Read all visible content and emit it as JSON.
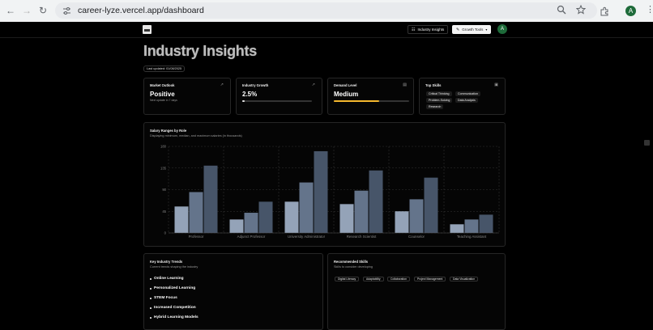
{
  "browser": {
    "url": "career-lyze.vercel.app/dashboard",
    "avatar_letter": "A"
  },
  "header": {
    "industry_insights_label": "Industry Insights",
    "growth_tools_label": "Growth Tools",
    "avatar_letter": "A"
  },
  "page": {
    "title": "Industry Insights",
    "last_updated": "Last updated: 01/08/2025"
  },
  "cards": {
    "market": {
      "title": "Market Outlook",
      "value": "Positive",
      "sub": "Next update in 7 days"
    },
    "growth": {
      "title": "Industry Growth",
      "value": "2.5%",
      "progress": 0.025
    },
    "demand": {
      "title": "Demand Level",
      "value": "Medium",
      "progress": 0.6,
      "bar_color": "#f5b82e"
    },
    "skills": {
      "title": "Top Skills",
      "items": [
        "Critical Thinking",
        "Communication",
        "Problem-Solving",
        "Data Analysis",
        "Research"
      ]
    }
  },
  "chart": {
    "title": "Salary Ranges by Role",
    "subtitle": "Displaying minimum, median, and maximum salaries (in thousands)",
    "colors": [
      "#94a3b8",
      "#64748b",
      "#475569"
    ]
  },
  "chart_data": {
    "type": "bar",
    "categories": [
      "Professor",
      "Adjunct Professor",
      "University Administrator",
      "Research Scientist",
      "Counselor",
      "Teaching Assistant"
    ],
    "series": [
      {
        "values": [
          55,
          28,
          65,
          60,
          45,
          18
        ]
      },
      {
        "values": [
          85,
          42,
          105,
          88,
          70,
          28
        ]
      },
      {
        "values": [
          140,
          65,
          170,
          130,
          115,
          38
        ]
      }
    ],
    "y_ticks": [
      "0",
      "45",
      "90",
      "135",
      "180"
    ],
    "ylim": [
      0,
      180
    ],
    "grid": true
  },
  "trends": {
    "title": "Key Industry Trends",
    "subtitle": "Current trends shaping the industry",
    "items": [
      "Online Learning",
      "Personalized Learning",
      "STEM Focus",
      "Increased Competition",
      "Hybrid Learning Models"
    ]
  },
  "recommended": {
    "title": "Recommended Skills",
    "subtitle": "Skills to consider developing",
    "items": [
      "Digital Literacy",
      "Adaptability",
      "Collaboration",
      "Project Management",
      "Data Visualization"
    ]
  }
}
